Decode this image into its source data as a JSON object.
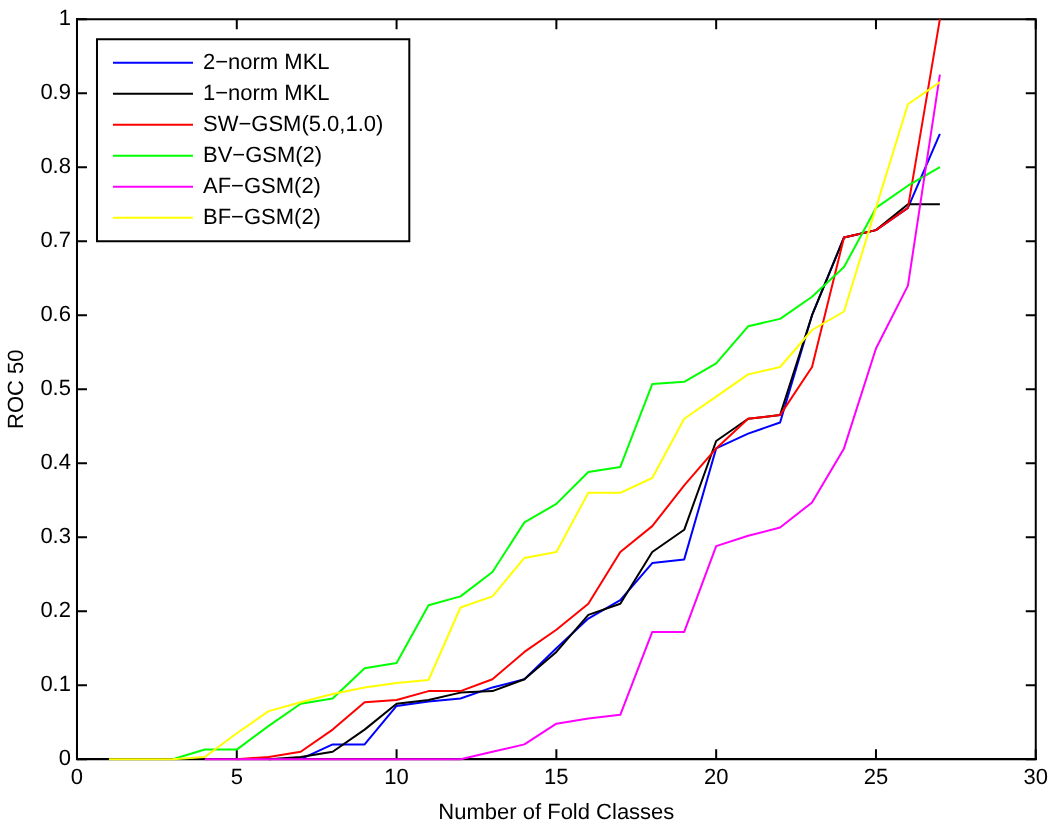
{
  "chart_data": {
    "type": "line",
    "xlabel": "Number of Fold Classes",
    "ylabel": "ROC 50",
    "x": [
      1,
      2,
      3,
      4,
      5,
      6,
      7,
      8,
      9,
      10,
      11,
      12,
      13,
      14,
      15,
      16,
      17,
      18,
      19,
      20,
      21,
      22,
      23,
      24,
      25,
      26,
      27
    ],
    "xlim": [
      0,
      30
    ],
    "xticks": [
      0,
      5,
      10,
      15,
      20,
      25,
      30
    ],
    "ylim": [
      0,
      1
    ],
    "yticks": [
      0,
      0.1,
      0.2,
      0.3,
      0.4,
      0.5,
      0.6,
      0.7,
      0.8,
      0.9,
      1
    ],
    "grid": false,
    "legend": "top left",
    "marker": "none",
    "line_style": "solid",
    "series": [
      {
        "name": "2−norm MKL",
        "color": "#0000ff",
        "values": [
          null,
          null,
          null,
          null,
          null,
          null,
          0,
          0.02,
          0.02,
          0.072,
          0.078,
          0.082,
          0.097,
          0.108,
          0.15,
          0.19,
          0.215,
          0.265,
          0.27,
          0.42,
          0.44,
          0.455,
          0.6,
          0.705,
          0.715,
          0.745,
          0.845
        ]
      },
      {
        "name": "1−norm MKL",
        "color": "#000000",
        "values": [
          null,
          null,
          null,
          null,
          null,
          0,
          0.003,
          0.01,
          0.04,
          0.075,
          0.08,
          0.09,
          0.092,
          0.108,
          0.145,
          0.195,
          0.21,
          0.28,
          0.31,
          0.43,
          0.46,
          0.465,
          0.6,
          0.705,
          0.715,
          0.75,
          0.75
        ]
      },
      {
        "name": "SW−GSM(5.0,1.0)",
        "color": "#ff0000",
        "values": [
          null,
          null,
          null,
          null,
          0,
          0.003,
          0.01,
          0.04,
          0.077,
          0.08,
          0.092,
          0.092,
          0.108,
          0.145,
          0.175,
          0.21,
          0.28,
          0.315,
          0.37,
          0.42,
          0.46,
          0.465,
          0.53,
          0.705,
          0.715,
          0.745,
          1.0
        ]
      },
      {
        "name": "BV−GSM(2)",
        "color": "#00ff00",
        "values": [
          null,
          null,
          0,
          0.013,
          0.013,
          0.045,
          0.075,
          0.082,
          0.123,
          0.13,
          0.208,
          0.22,
          0.253,
          0.32,
          0.345,
          0.388,
          0.395,
          0.507,
          0.51,
          0.535,
          0.585,
          0.595,
          0.625,
          0.665,
          0.745,
          0.775,
          0.8
        ]
      },
      {
        "name": "AF−GSM(2)",
        "color": "#ff00ff",
        "values": [
          null,
          null,
          null,
          0,
          0,
          0,
          0,
          0,
          0,
          0,
          0,
          0,
          0.01,
          0.02,
          0.048,
          0.055,
          0.06,
          0.172,
          0.172,
          0.288,
          0.302,
          0.313,
          0.347,
          0.42,
          0.555,
          0.64,
          0.925
        ]
      },
      {
        "name": "BF−GSM(2)",
        "color": "#ffff00",
        "values": [
          0,
          0,
          0,
          0.003,
          0.035,
          0.065,
          0.077,
          0.088,
          0.097,
          0.103,
          0.107,
          0.205,
          0.22,
          0.272,
          0.28,
          0.36,
          0.36,
          0.38,
          0.46,
          0.49,
          0.52,
          0.53,
          0.58,
          0.605,
          0.745,
          0.885,
          0.915
        ]
      }
    ]
  }
}
